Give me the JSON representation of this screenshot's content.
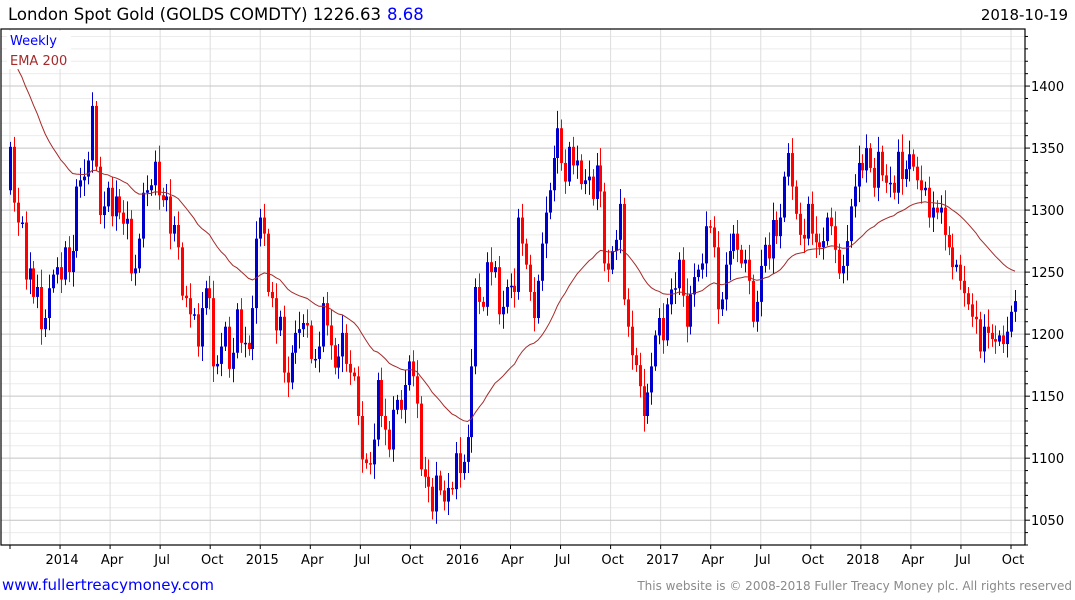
{
  "header": {
    "title": "London Spot Gold (GOLDS COMDTY) 1226.63",
    "change": "8.68",
    "date": "2018-10-19"
  },
  "legend": {
    "series": "Weekly",
    "ema": "EMA 200"
  },
  "footer": {
    "site": "www.fullertreacymoney.com",
    "copyright": "This website is © 2008-2018 Fuller Treacy Money plc. All rights reserved"
  },
  "colors": {
    "up": "#0000cc",
    "down": "#ff0000",
    "ema": "#a52a2a",
    "grid_major": "#c4c4c4",
    "grid_minor": "#ececec",
    "grid_vertical": "#dddddd"
  },
  "chart_data": {
    "type": "candlestick",
    "title": "London Spot Gold (GOLDS COMDTY)",
    "frequency": "Weekly",
    "ylim": [
      1030,
      1446
    ],
    "y_ticks": [
      1050,
      1100,
      1150,
      1200,
      1250,
      1300,
      1350,
      1400
    ],
    "y_minor_step": 10,
    "x_ticks": [
      "",
      "2014",
      "Apr",
      "Jul",
      "Oct",
      "2015",
      "Apr",
      "Jul",
      "Oct",
      "2016",
      "Apr",
      "Jul",
      "Oct",
      "2017",
      "Apr",
      "Jul",
      "Oct",
      "2018",
      "Apr",
      "Jul",
      "Oct"
    ],
    "first_open": 1316,
    "ema_period_weeks": 40,
    "ema_seed": 1420,
    "close": [
      1351,
      1306,
      1290,
      1290,
      1244,
      1253,
      1230,
      1238,
      1204,
      1213,
      1237,
      1248,
      1254,
      1244,
      1270,
      1250,
      1267,
      1319,
      1324,
      1327,
      1340,
      1384,
      1335,
      1296,
      1303,
      1318,
      1295,
      1311,
      1298,
      1289,
      1293,
      1249,
      1253,
      1277,
      1314,
      1316,
      1320,
      1339,
      1312,
      1308,
      1311,
      1281,
      1288,
      1270,
      1231,
      1229,
      1216,
      1216,
      1190,
      1221,
      1237,
      1229,
      1174,
      1176,
      1190,
      1206,
      1172,
      1185,
      1220,
      1193,
      1193,
      1188,
      1221,
      1277,
      1294,
      1281,
      1234,
      1229,
      1203,
      1214,
      1169,
      1161,
      1185,
      1201,
      1204,
      1209,
      1207,
      1180,
      1180,
      1190,
      1225,
      1207,
      1191,
      1173,
      1182,
      1201,
      1176,
      1169,
      1166,
      1134,
      1099,
      1096,
      1095,
      1115,
      1163,
      1134,
      1123,
      1107,
      1139,
      1147,
      1139,
      1159,
      1178,
      1166,
      1144,
      1091,
      1085,
      1077,
      1057,
      1086,
      1074,
      1065,
      1076,
      1075,
      1104,
      1088,
      1097,
      1117,
      1174,
      1238,
      1226,
      1222,
      1258,
      1250,
      1254,
      1216,
      1222,
      1238,
      1239,
      1234,
      1294,
      1273,
      1256,
      1234,
      1213,
      1243,
      1273,
      1298,
      1316,
      1342,
      1366,
      1338,
      1323,
      1351,
      1336,
      1340,
      1321,
      1324,
      1327,
      1309,
      1336,
      1315,
      1257,
      1252,
      1267,
      1276,
      1305,
      1228,
      1206,
      1183,
      1175,
      1158,
      1134,
      1153,
      1174,
      1199,
      1213,
      1195,
      1224,
      1236,
      1237,
      1260,
      1231,
      1206,
      1232,
      1246,
      1252,
      1257,
      1287,
      1286,
      1270,
      1220,
      1228,
      1256,
      1267,
      1281,
      1268,
      1257,
      1260,
      1243,
      1210,
      1226,
      1255,
      1272,
      1261,
      1292,
      1279,
      1294,
      1327,
      1346,
      1319,
      1297,
      1280,
      1277,
      1305,
      1281,
      1274,
      1270,
      1275,
      1294,
      1287,
      1268,
      1249,
      1255,
      1275,
      1303,
      1319,
      1338,
      1332,
      1350,
      1334,
      1318,
      1347,
      1328,
      1322,
      1322,
      1314,
      1347,
      1325,
      1333,
      1345,
      1335,
      1324,
      1316,
      1318,
      1294,
      1302,
      1298,
      1302,
      1280,
      1270,
      1254,
      1256,
      1243,
      1233,
      1224,
      1214,
      1212,
      1186,
      1206,
      1201,
      1196,
      1194,
      1199,
      1192,
      1202,
      1218,
      1226.63
    ]
  }
}
